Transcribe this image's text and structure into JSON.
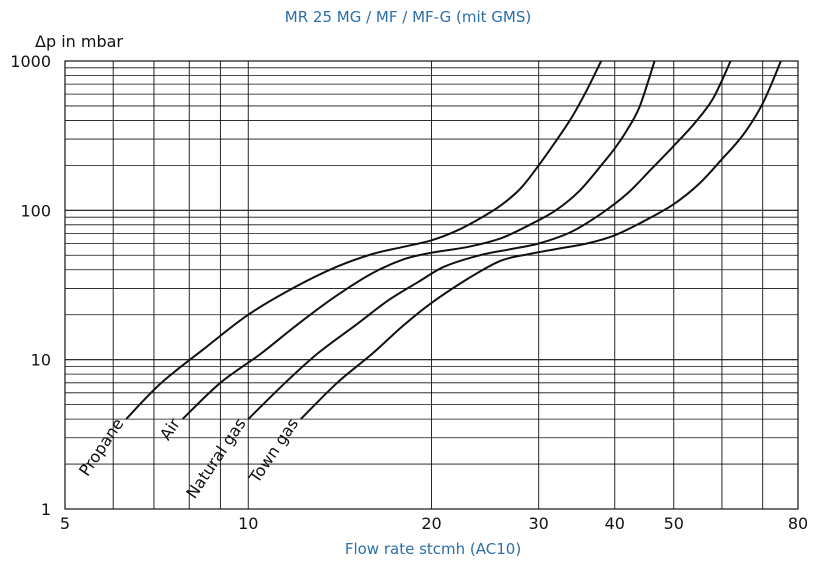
{
  "chart_data": {
    "type": "line",
    "title": "MR 25 MG / MF / MF-G (mit GMS)",
    "ylabel": "Δp in mbar",
    "xlabel": "Flow rate stcmh (AC10)",
    "x_scale": "log",
    "y_scale": "log",
    "xlim": [
      5,
      80
    ],
    "ylim": [
      1,
      1000
    ],
    "x_ticks": [
      5,
      10,
      20,
      30,
      40,
      50,
      80
    ],
    "x_tick_labels": [
      "5",
      "10",
      "20",
      "30",
      "40",
      "50",
      "80"
    ],
    "y_ticks": [
      1,
      10,
      100,
      1000
    ],
    "y_tick_labels": [
      "1",
      "10",
      "100",
      "1000"
    ],
    "grid": true,
    "series": [
      {
        "name": "Propane",
        "x": [
          6.3,
          7.2,
          8.5,
          10,
          12,
          14,
          16,
          18,
          20,
          22,
          24,
          26,
          28,
          30,
          32,
          34,
          36,
          38
        ],
        "y": [
          4,
          7,
          12,
          20,
          31,
          42,
          51,
          57,
          63,
          73,
          88,
          108,
          140,
          200,
          290,
          420,
          640,
          1000
        ]
      },
      {
        "name": "Air",
        "x": [
          7.8,
          9,
          10.5,
          12,
          14,
          16,
          18,
          20,
          23,
          26,
          29,
          32,
          35,
          38,
          40,
          42,
          44,
          46.5
        ],
        "y": [
          4,
          7,
          11,
          17,
          27,
          38,
          47,
          52,
          57,
          65,
          80,
          100,
          135,
          200,
          260,
          350,
          500,
          1000
        ]
      },
      {
        "name": "Natural gas",
        "x": [
          10,
          11.5,
          13,
          15,
          17,
          19,
          21,
          24,
          27,
          30,
          34,
          38,
          42,
          46,
          50,
          54,
          58,
          62
        ],
        "y": [
          4,
          7,
          11,
          17,
          25,
          33,
          42,
          50,
          55,
          60,
          72,
          95,
          130,
          190,
          270,
          380,
          560,
          1000
        ]
      },
      {
        "name": "Town gas",
        "x": [
          12.2,
          14,
          16,
          18,
          20,
          23,
          26,
          29,
          32,
          36,
          40,
          45,
          50,
          55,
          60,
          65,
          70,
          75
        ],
        "y": [
          4,
          7,
          11,
          17,
          24,
          35,
          46,
          51,
          55,
          60,
          68,
          86,
          110,
          150,
          220,
          320,
          520,
          1000
        ]
      }
    ]
  }
}
